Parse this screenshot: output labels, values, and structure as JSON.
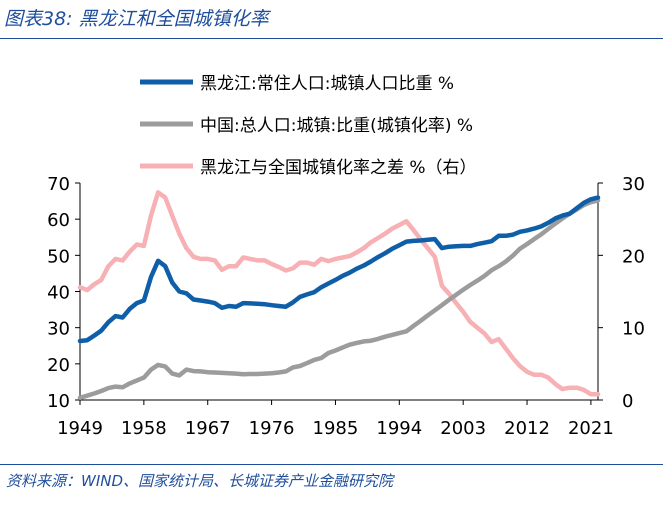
{
  "figure_title": "图表38:  黑龙江和全国城镇化率",
  "source": "资料来源：WIND、国家统计局、长城证券产业金融研究院",
  "colors": {
    "series1": "#0f5fa8",
    "series2": "#9c9c9c",
    "series3": "#f7b0b4",
    "axis": "#000000",
    "title": "#1f4f9c"
  },
  "chart_data": {
    "type": "line",
    "title": "",
    "x_ticks": [
      "1949",
      "1958",
      "1967",
      "1976",
      "1985",
      "1994",
      "2003",
      "2012",
      "2021"
    ],
    "xlim": [
      1949,
      2022
    ],
    "y_left": {
      "lim": [
        10,
        70
      ],
      "ticks": [
        "70",
        "60",
        "50",
        "40",
        "30",
        "20",
        "10"
      ]
    },
    "y_right": {
      "lim": [
        0,
        30
      ],
      "ticks": [
        "30",
        "20",
        "10",
        "0"
      ]
    },
    "series": [
      {
        "name": "黑龙江:常住人口:城镇人口比重 %",
        "axis": "left",
        "x": [
          1949,
          1950,
          1951,
          1952,
          1953,
          1954,
          1955,
          1956,
          1957,
          1958,
          1959,
          1960,
          1961,
          1962,
          1963,
          1964,
          1965,
          1966,
          1967,
          1968,
          1969,
          1970,
          1971,
          1972,
          1973,
          1974,
          1975,
          1976,
          1977,
          1978,
          1979,
          1980,
          1981,
          1982,
          1983,
          1984,
          1985,
          1986,
          1987,
          1988,
          1989,
          1990,
          1991,
          1992,
          1993,
          1994,
          1995,
          1996,
          1997,
          1998,
          1999,
          2000,
          2001,
          2002,
          2003,
          2004,
          2005,
          2006,
          2007,
          2008,
          2009,
          2010,
          2011,
          2012,
          2013,
          2014,
          2015,
          2016,
          2017,
          2018,
          2019,
          2020,
          2021,
          2022
        ],
        "values": [
          26.3,
          26.5,
          27.8,
          29.2,
          31.5,
          33.2,
          32.8,
          35.2,
          36.8,
          37.5,
          44.0,
          48.5,
          47.0,
          42.5,
          40.0,
          39.5,
          37.8,
          37.5,
          37.2,
          36.8,
          35.5,
          36.0,
          35.8,
          36.8,
          36.7,
          36.6,
          36.5,
          36.2,
          36.0,
          35.8,
          37.0,
          38.5,
          39.2,
          39.8,
          41.2,
          42.2,
          43.2,
          44.3,
          45.2,
          46.3,
          47.2,
          48.3,
          49.5,
          50.6,
          51.8,
          52.8,
          53.8,
          54.0,
          54.1,
          54.3,
          54.5,
          52.0,
          52.4,
          52.5,
          52.6,
          52.6,
          53.1,
          53.5,
          53.9,
          55.4,
          55.4,
          55.7,
          56.5,
          56.9,
          57.4,
          58.0,
          59.0,
          60.2,
          61.0,
          61.5,
          63.0,
          64.5,
          65.5,
          66.0
        ]
      },
      {
        "name": "中国:总人口:城镇:比重(城镇化率) %",
        "axis": "left",
        "x": [
          1949,
          1950,
          1951,
          1952,
          1953,
          1954,
          1955,
          1956,
          1957,
          1958,
          1959,
          1960,
          1961,
          1962,
          1963,
          1964,
          1965,
          1966,
          1967,
          1968,
          1969,
          1970,
          1971,
          1972,
          1973,
          1974,
          1975,
          1976,
          1977,
          1978,
          1979,
          1980,
          1981,
          1982,
          1983,
          1984,
          1985,
          1986,
          1987,
          1988,
          1989,
          1990,
          1991,
          1992,
          1993,
          1994,
          1995,
          1996,
          1997,
          1998,
          1999,
          2000,
          2001,
          2002,
          2003,
          2004,
          2005,
          2006,
          2007,
          2008,
          2009,
          2010,
          2011,
          2012,
          2013,
          2014,
          2015,
          2016,
          2017,
          2018,
          2019,
          2020,
          2021,
          2022
        ],
        "values": [
          10.6,
          11.2,
          11.8,
          12.5,
          13.3,
          13.7,
          13.5,
          14.6,
          15.4,
          16.2,
          18.4,
          19.7,
          19.3,
          17.3,
          16.8,
          18.4,
          18.0,
          17.9,
          17.7,
          17.6,
          17.5,
          17.4,
          17.3,
          17.1,
          17.2,
          17.2,
          17.3,
          17.4,
          17.6,
          17.9,
          19.0,
          19.4,
          20.2,
          21.1,
          21.6,
          23.0,
          23.7,
          24.5,
          25.3,
          25.8,
          26.2,
          26.4,
          26.9,
          27.5,
          28.0,
          28.5,
          29.0,
          30.5,
          31.9,
          33.4,
          34.8,
          36.2,
          37.7,
          39.1,
          40.5,
          41.8,
          43.0,
          44.3,
          45.9,
          47.0,
          48.3,
          49.9,
          51.8,
          53.1,
          54.5,
          55.8,
          57.3,
          58.8,
          60.2,
          61.5,
          62.7,
          63.9,
          64.7,
          65.2
        ]
      },
      {
        "name": "黑龙江与全国城镇化率之差 %（右）",
        "axis": "right",
        "x": [
          1949,
          1950,
          1951,
          1952,
          1953,
          1954,
          1955,
          1956,
          1957,
          1958,
          1959,
          1960,
          1961,
          1962,
          1963,
          1964,
          1965,
          1966,
          1967,
          1968,
          1969,
          1970,
          1971,
          1972,
          1973,
          1974,
          1975,
          1976,
          1977,
          1978,
          1979,
          1980,
          1981,
          1982,
          1983,
          1984,
          1985,
          1986,
          1987,
          1988,
          1989,
          1990,
          1991,
          1992,
          1993,
          1994,
          1995,
          1996,
          1997,
          1998,
          1999,
          2000,
          2001,
          2002,
          2003,
          2004,
          2005,
          2006,
          2007,
          2008,
          2009,
          2010,
          2011,
          2012,
          2013,
          2014,
          2015,
          2016,
          2017,
          2018,
          2019,
          2020,
          2021,
          2022
        ],
        "values": [
          15.6,
          15.2,
          16.0,
          16.6,
          18.5,
          19.5,
          19.3,
          20.5,
          21.5,
          21.3,
          25.5,
          28.7,
          28.0,
          25.5,
          23.0,
          21.0,
          19.8,
          19.5,
          19.5,
          19.3,
          18.0,
          18.5,
          18.5,
          19.7,
          19.5,
          19.3,
          19.3,
          18.8,
          18.4,
          17.9,
          18.2,
          19.0,
          19.0,
          18.7,
          19.5,
          19.2,
          19.5,
          19.7,
          19.9,
          20.4,
          21.0,
          21.8,
          22.4,
          23.0,
          23.7,
          24.2,
          24.7,
          23.5,
          22.2,
          21.0,
          19.8,
          15.8,
          14.7,
          13.4,
          12.2,
          10.8,
          10.0,
          9.2,
          8.0,
          8.4,
          7.1,
          5.8,
          4.7,
          3.9,
          3.5,
          3.5,
          3.1,
          2.2,
          1.5,
          1.7,
          1.7,
          1.4,
          0.8,
          0.8
        ]
      }
    ]
  }
}
